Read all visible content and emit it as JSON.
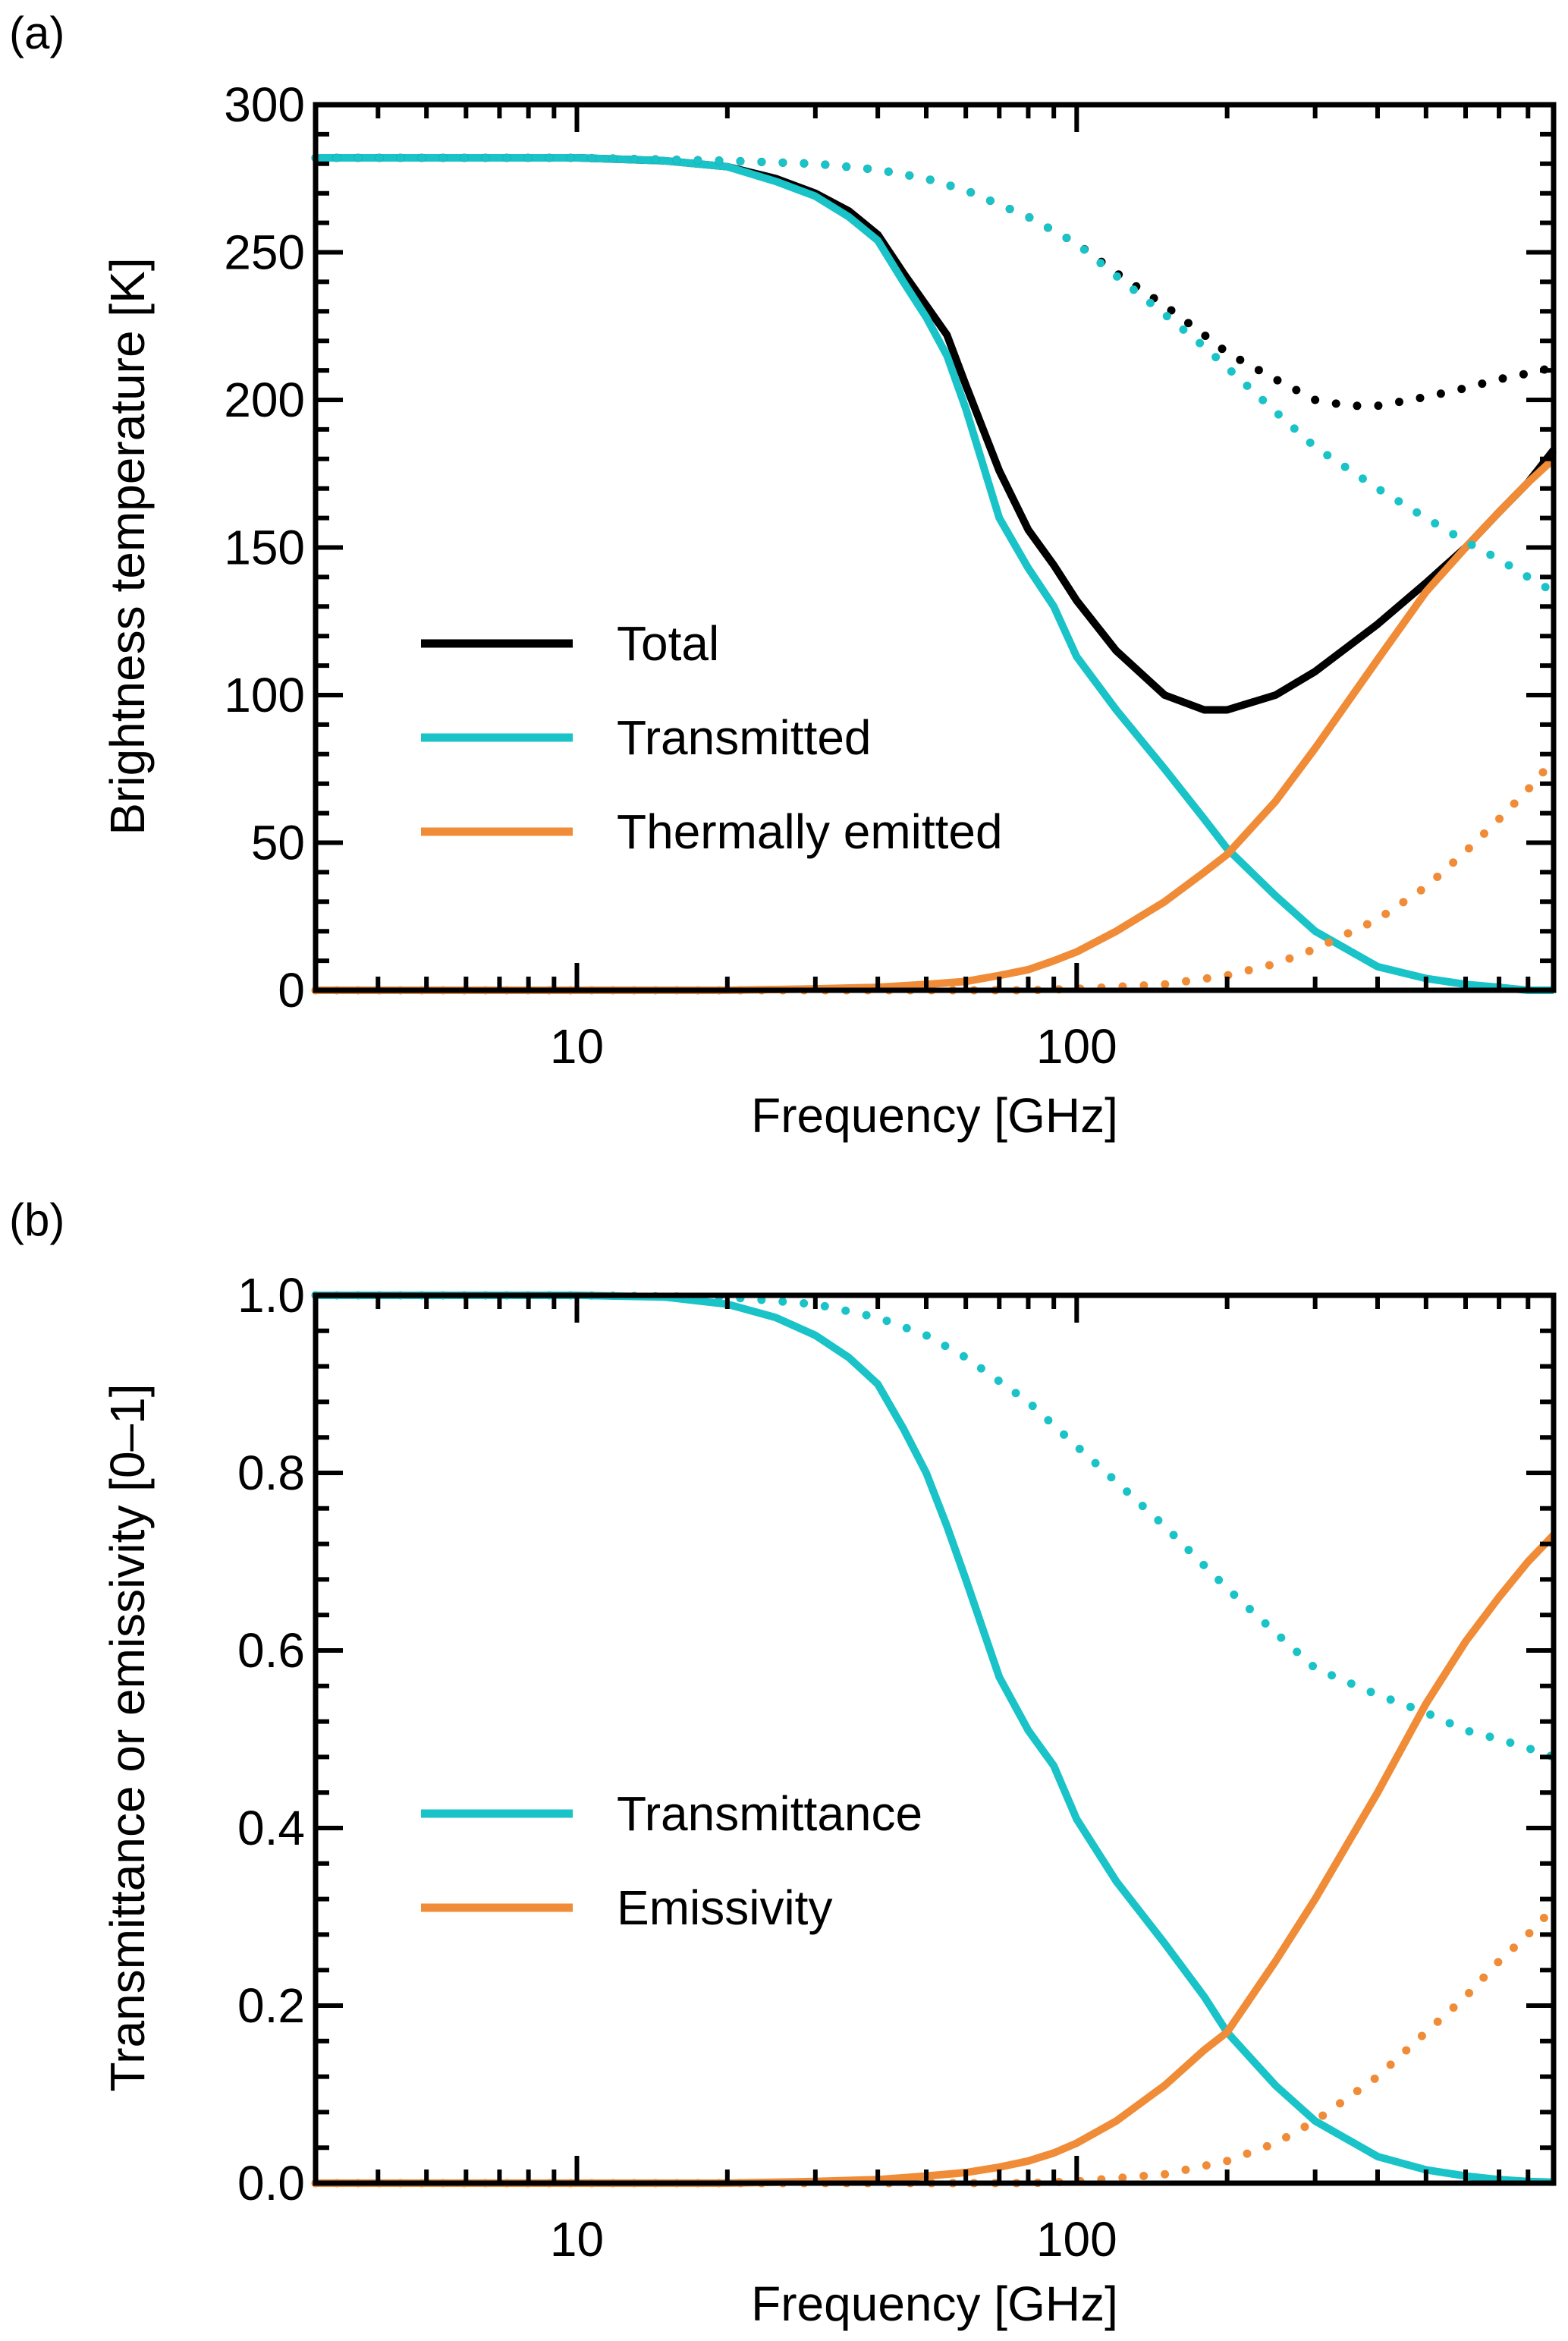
{
  "figure": {
    "panels": [
      {
        "id": "a",
        "label": "(a)"
      },
      {
        "id": "b",
        "label": "(b)"
      }
    ]
  },
  "chart_data": [
    {
      "panel": "(a)",
      "type": "line",
      "xscale": "log",
      "xlim": [
        3,
        900
      ],
      "ylim": [
        0,
        300
      ],
      "xticks": [
        10,
        100
      ],
      "xtick_labels": [
        "10",
        "100"
      ],
      "yticks": [
        0,
        50,
        100,
        150,
        200,
        250,
        300
      ],
      "ytick_labels": [
        "0",
        "50",
        "100",
        "150",
        "200",
        "250",
        "300"
      ],
      "xlabel": "Frequency [GHz]",
      "ylabel": "Brightness temperature [K]",
      "legend": {
        "position": "lower-left",
        "entries": [
          "Total",
          "Transmitted",
          "Thermally emitted"
        ]
      },
      "series": [
        {
          "name": "Total",
          "style": "solid",
          "color": "#000000",
          "in_legend": true,
          "x": [
            3,
            5,
            10,
            15,
            20,
            25,
            30,
            35,
            40,
            45,
            50,
            55,
            60,
            70,
            80,
            90,
            100,
            120,
            150,
            180,
            200,
            250,
            300,
            400,
            500,
            600,
            700,
            800,
            900
          ],
          "y": [
            282,
            282,
            282,
            281,
            279,
            275,
            270,
            264,
            256,
            243,
            232,
            222,
            205,
            176,
            156,
            144,
            132,
            115,
            100,
            95,
            95,
            100,
            108,
            124,
            138,
            150,
            162,
            172,
            183
          ]
        },
        {
          "name": "Transmitted",
          "style": "solid",
          "color": "#19c3c8",
          "in_legend": true,
          "x": [
            3,
            5,
            10,
            15,
            20,
            25,
            30,
            35,
            40,
            45,
            50,
            55,
            60,
            70,
            80,
            90,
            100,
            120,
            150,
            180,
            200,
            250,
            300,
            400,
            500,
            600,
            700,
            800,
            900
          ],
          "y": [
            282,
            282,
            282,
            281,
            279,
            274,
            269,
            262,
            254,
            240,
            228,
            215,
            197,
            160,
            143,
            130,
            113,
            95,
            75,
            58,
            48,
            32,
            20,
            8,
            4,
            2,
            1,
            0,
            0
          ]
        },
        {
          "name": "Thermally emitted",
          "style": "solid",
          "color": "#f08c37",
          "in_legend": true,
          "x": [
            3,
            10,
            20,
            30,
            40,
            50,
            60,
            70,
            80,
            90,
            100,
            120,
            150,
            180,
            200,
            250,
            300,
            400,
            500,
            600,
            700,
            800,
            900
          ],
          "y": [
            0,
            0,
            0,
            0.5,
            1,
            2,
            3,
            5,
            7,
            10,
            13,
            20,
            30,
            40,
            46,
            64,
            82,
            112,
            135,
            150,
            162,
            172,
            180
          ]
        },
        {
          "name": "Total (dotted)",
          "style": "dotted",
          "color": "#000000",
          "in_legend": false,
          "x": [
            3,
            10,
            20,
            30,
            40,
            50,
            60,
            80,
            100,
            120,
            150,
            180,
            200,
            250,
            300,
            350,
            400,
            500,
            600,
            700,
            800,
            900
          ],
          "y": [
            282,
            282,
            281,
            280,
            278,
            275,
            271,
            262,
            253,
            243,
            232,
            222,
            216,
            207,
            200,
            198,
            198,
            201,
            204,
            207,
            209,
            211
          ]
        },
        {
          "name": "Transmitted (dotted)",
          "style": "dotted",
          "color": "#19c3c8",
          "in_legend": false,
          "x": [
            3,
            10,
            20,
            30,
            40,
            50,
            60,
            80,
            100,
            120,
            150,
            180,
            200,
            250,
            300,
            400,
            500,
            600,
            700,
            800,
            900
          ],
          "y": [
            282,
            282,
            281,
            280,
            278,
            275,
            271,
            262,
            253,
            242,
            229,
            218,
            211,
            196,
            184,
            170,
            160,
            152,
            146,
            140,
            135
          ]
        },
        {
          "name": "Thermally emitted (dotted)",
          "style": "dotted",
          "color": "#f08c37",
          "in_legend": false,
          "x": [
            3,
            30,
            50,
            80,
            100,
            150,
            200,
            250,
            300,
            400,
            500,
            600,
            700,
            800,
            900
          ],
          "y": [
            0,
            0,
            0,
            0,
            0.5,
            2,
            5,
            9,
            14,
            24,
            35,
            47,
            58,
            68,
            78
          ]
        }
      ]
    },
    {
      "panel": "(b)",
      "type": "line",
      "xscale": "log",
      "xlim": [
        3,
        900
      ],
      "ylim": [
        0,
        1.0
      ],
      "xticks": [
        10,
        100
      ],
      "xtick_labels": [
        "10",
        "100"
      ],
      "yticks": [
        0,
        0.2,
        0.4,
        0.6,
        0.8,
        1.0
      ],
      "ytick_labels": [
        "0.0",
        "0.2",
        "0.4",
        "0.6",
        "0.8",
        "1.0"
      ],
      "xlabel": "Frequency [GHz]",
      "ylabel": "Transmittance or emissivity [0–1]",
      "legend": {
        "position": "lower-left",
        "entries": [
          "Transmittance",
          "Emissivity"
        ]
      },
      "series": [
        {
          "name": "Transmittance",
          "style": "solid",
          "color": "#19c3c8",
          "in_legend": true,
          "x": [
            3,
            5,
            10,
            15,
            20,
            25,
            30,
            35,
            40,
            45,
            50,
            55,
            60,
            70,
            80,
            90,
            100,
            120,
            150,
            180,
            200,
            250,
            300,
            400,
            500,
            600,
            700,
            800,
            900
          ],
          "y": [
            1.0,
            1.0,
            1.0,
            0.998,
            0.99,
            0.975,
            0.955,
            0.93,
            0.9,
            0.85,
            0.8,
            0.74,
            0.68,
            0.57,
            0.51,
            0.47,
            0.41,
            0.34,
            0.27,
            0.21,
            0.17,
            0.11,
            0.07,
            0.03,
            0.015,
            0.008,
            0.004,
            0.002,
            0.001
          ]
        },
        {
          "name": "Emissivity",
          "style": "solid",
          "color": "#f08c37",
          "in_legend": true,
          "x": [
            3,
            10,
            20,
            30,
            40,
            50,
            60,
            70,
            80,
            90,
            100,
            120,
            150,
            180,
            200,
            250,
            300,
            400,
            500,
            600,
            700,
            800,
            900
          ],
          "y": [
            0,
            0,
            0,
            0.002,
            0.004,
            0.008,
            0.012,
            0.018,
            0.025,
            0.034,
            0.045,
            0.07,
            0.11,
            0.15,
            0.17,
            0.25,
            0.32,
            0.44,
            0.54,
            0.61,
            0.66,
            0.7,
            0.73
          ]
        },
        {
          "name": "Transmittance (dotted)",
          "style": "dotted",
          "color": "#19c3c8",
          "in_legend": false,
          "x": [
            3,
            10,
            20,
            30,
            40,
            50,
            60,
            80,
            100,
            120,
            150,
            200,
            250,
            300,
            400,
            500,
            600,
            700,
            800,
            900
          ],
          "y": [
            1.0,
            1.0,
            0.998,
            0.99,
            0.975,
            0.955,
            0.93,
            0.88,
            0.83,
            0.79,
            0.74,
            0.67,
            0.62,
            0.58,
            0.55,
            0.53,
            0.51,
            0.5,
            0.49,
            0.48
          ]
        },
        {
          "name": "Emissivity (dotted)",
          "style": "dotted",
          "color": "#f08c37",
          "in_legend": false,
          "x": [
            3,
            80,
            100,
            150,
            200,
            250,
            300,
            400,
            500,
            600,
            700,
            800,
            900
          ],
          "y": [
            0,
            0,
            0.002,
            0.01,
            0.025,
            0.045,
            0.07,
            0.12,
            0.17,
            0.21,
            0.25,
            0.28,
            0.31
          ]
        }
      ]
    }
  ]
}
